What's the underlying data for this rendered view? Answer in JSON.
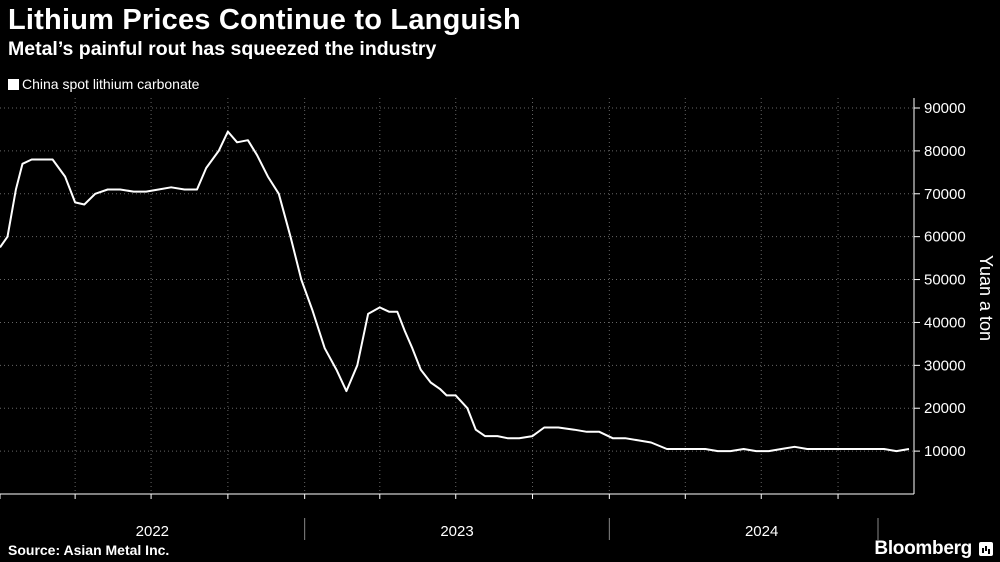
{
  "header": {
    "title": "Lithium Prices Continue to Languish",
    "subtitle": "Metal’s painful rout has squeezed the industry"
  },
  "footer": {
    "source": "Source: Asian Metal Inc.",
    "brand": "Bloomberg",
    "brand_icon": "bloomberg-chart-icon"
  },
  "colors": {
    "background": "#000000",
    "line": "#ffffff",
    "grid": "#666666"
  },
  "chart_data": {
    "type": "line",
    "title": "Lithium Prices Continue to Languish",
    "subtitle": "Metal’s painful rout has squeezed the industry",
    "ylabel": "Yuan a ton",
    "ylim": [
      0,
      90000
    ],
    "yticks": [
      10000,
      20000,
      30000,
      40000,
      50000,
      60000,
      70000,
      80000,
      90000
    ],
    "xlim": [
      "2022-01-01",
      "2024-12-31"
    ],
    "xtick_labels": [
      "2022",
      "2023",
      "2024"
    ],
    "grid": true,
    "legend_position": "top-left",
    "series": [
      {
        "name": "China spot lithium carbonate",
        "x": [
          "2022-01-01",
          "2022-01-10",
          "2022-01-20",
          "2022-01-28",
          "2022-02-08",
          "2022-02-20",
          "2022-03-05",
          "2022-03-20",
          "2022-04-01",
          "2022-04-12",
          "2022-04-25",
          "2022-05-10",
          "2022-05-25",
          "2022-06-10",
          "2022-06-25",
          "2022-07-10",
          "2022-07-25",
          "2022-08-10",
          "2022-08-25",
          "2022-09-05",
          "2022-09-20",
          "2022-10-01",
          "2022-10-12",
          "2022-10-25",
          "2022-11-05",
          "2022-11-18",
          "2022-12-01",
          "2022-12-15",
          "2022-12-28",
          "2023-01-10",
          "2023-01-25",
          "2023-02-08",
          "2023-02-20",
          "2023-03-05",
          "2023-03-18",
          "2023-04-01",
          "2023-04-12",
          "2023-04-22",
          "2023-05-01",
          "2023-05-10",
          "2023-05-20",
          "2023-06-01",
          "2023-06-12",
          "2023-06-20",
          "2023-07-01",
          "2023-07-15",
          "2023-07-25",
          "2023-08-05",
          "2023-08-20",
          "2023-09-01",
          "2023-09-15",
          "2023-10-01",
          "2023-10-15",
          "2023-11-01",
          "2023-11-20",
          "2023-12-05",
          "2023-12-20",
          "2024-01-05",
          "2024-01-20",
          "2024-02-05",
          "2024-02-20",
          "2024-03-10",
          "2024-03-25",
          "2024-04-10",
          "2024-04-25",
          "2024-05-10",
          "2024-05-25",
          "2024-06-10",
          "2024-06-25",
          "2024-07-10",
          "2024-07-25",
          "2024-08-10",
          "2024-08-25",
          "2024-09-10",
          "2024-09-25",
          "2024-10-10",
          "2024-10-25",
          "2024-11-10",
          "2024-11-25",
          "2024-12-10",
          "2024-12-25"
        ],
        "y": [
          57500,
          60000,
          71000,
          77000,
          78000,
          78000,
          78000,
          74000,
          68000,
          67500,
          70000,
          71000,
          71000,
          70500,
          70500,
          71000,
          71500,
          71000,
          71000,
          76000,
          80000,
          84500,
          82000,
          82500,
          79000,
          74000,
          70000,
          60000,
          50000,
          43000,
          34000,
          29000,
          24000,
          30000,
          42000,
          43500,
          42500,
          42500,
          38000,
          34000,
          29000,
          26000,
          24500,
          23000,
          23000,
          20000,
          15000,
          13500,
          13500,
          13000,
          13000,
          13500,
          15500,
          15500,
          15000,
          14500,
          14500,
          13000,
          13000,
          12500,
          12000,
          10500,
          10500,
          10500,
          10500,
          10000,
          10000,
          10500,
          10000,
          10000,
          10500,
          11000,
          10500,
          10500,
          10500,
          10500,
          10500,
          10500,
          10500,
          10000,
          10500
        ]
      }
    ]
  }
}
